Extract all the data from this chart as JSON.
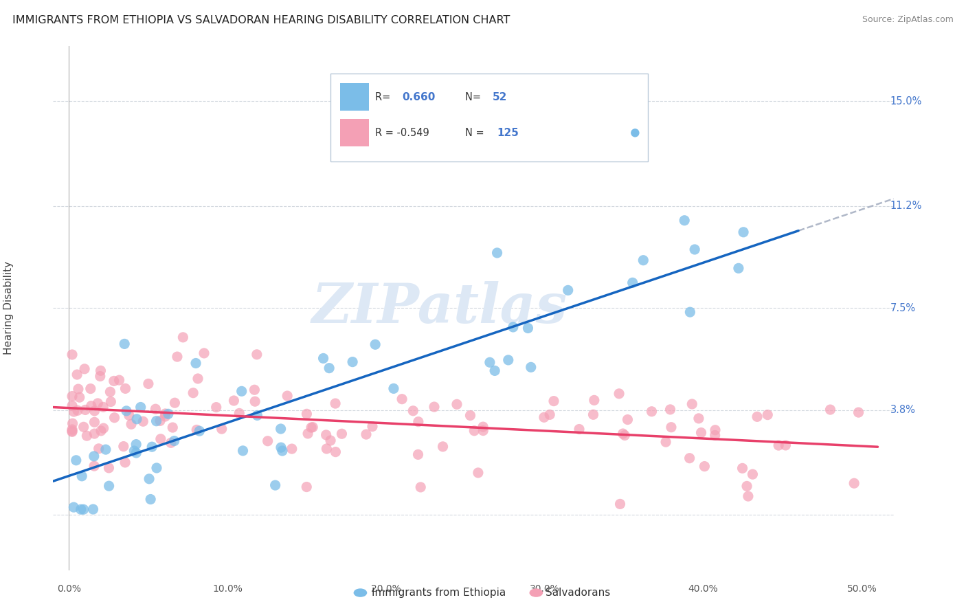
{
  "title": "IMMIGRANTS FROM ETHIOPIA VS SALVADORAN HEARING DISABILITY CORRELATION CHART",
  "source": "Source: ZipAtlas.com",
  "ylabel": "Hearing Disability",
  "xlim": [
    -1.0,
    52.0
  ],
  "ylim": [
    -2.0,
    17.0
  ],
  "yticks": [
    0.0,
    3.8,
    7.5,
    11.2,
    15.0
  ],
  "ytick_labels": [
    "",
    "3.8%",
    "7.5%",
    "11.2%",
    "15.0%"
  ],
  "xticks": [
    0.0,
    10.0,
    20.0,
    30.0,
    40.0,
    50.0
  ],
  "xtick_labels": [
    "0.0%",
    "10.0%",
    "20.0%",
    "30.0%",
    "40.0%",
    "50.0%"
  ],
  "color_blue": "#7bbde8",
  "color_pink": "#f4a0b5",
  "line_color_blue": "#1565c0",
  "line_color_pink": "#e8406a",
  "line_color_dashed": "#b0b8c8",
  "watermark": "ZIPatlas",
  "watermark_color": "#dde8f5",
  "background_color": "#ffffff",
  "grid_color": "#c8d0d8",
  "title_color": "#222222",
  "tick_label_color": "#555555",
  "axis_label_color": "#4477cc",
  "ylabel_color": "#444444",
  "source_color": "#888888",
  "legend_r1_label": "R= ",
  "legend_r1_val": "0.660",
  "legend_n1_label": "N= ",
  "legend_n1_val": "52",
  "legend_r2_label": "R = -0.549",
  "legend_n2_label": "N = ",
  "legend_n2_val": "125",
  "blue_line_start_x": -1.0,
  "blue_line_end_x": 46.0,
  "blue_line_start_y": 0.5,
  "blue_line_end_y": 10.2,
  "pink_line_start_x": -1.0,
  "pink_line_end_x": 51.0,
  "pink_line_start_y": 4.2,
  "pink_line_end_y": 1.2,
  "dash_line_start_x": 46.0,
  "dash_line_end_x": 52.0,
  "dash_line_start_y": 10.2,
  "dash_line_end_y": 13.5
}
